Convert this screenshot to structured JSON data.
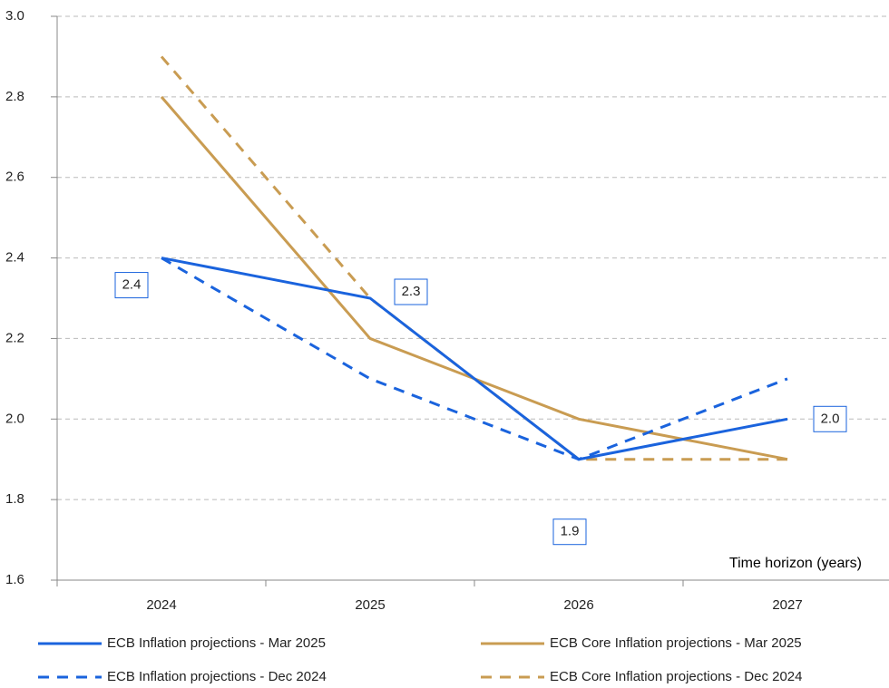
{
  "chart_data": {
    "type": "line",
    "x_label": "Time horizon (years)",
    "categories": [
      "2024",
      "2025",
      "2026",
      "2027"
    ],
    "series": [
      {
        "name": "ECB Inflation projections - Mar 2025",
        "color": "#1a63dd",
        "line_style": "solid",
        "values": [
          2.4,
          2.3,
          1.9,
          2.0
        ],
        "value_labels": [
          "2.4",
          "2.3",
          "1.9",
          "2.0"
        ]
      },
      {
        "name": "ECB Core Inflation projections - Mar 2025",
        "color": "#c99c52",
        "line_style": "solid",
        "values": [
          2.8,
          2.2,
          2.0,
          1.9
        ]
      },
      {
        "name": "ECB Inflation projections - Dec 2024",
        "color": "#1a63dd",
        "line_style": "dashed",
        "values": [
          2.4,
          2.1,
          1.9,
          2.1
        ]
      },
      {
        "name": "ECB Core Inflation projections - Dec 2024",
        "color": "#c99c52",
        "line_style": "dashed",
        "values": [
          2.9,
          2.3,
          1.9,
          1.9
        ]
      }
    ],
    "ylim": [
      1.6,
      3.0
    ],
    "yticks": [
      1.6,
      1.8,
      {
        "value": 2.0,
        "label": "2.0"
      },
      2.2,
      2.4,
      2.6,
      2.8,
      {
        "value": 3.0,
        "label": "3.0"
      }
    ],
    "grid": true
  }
}
